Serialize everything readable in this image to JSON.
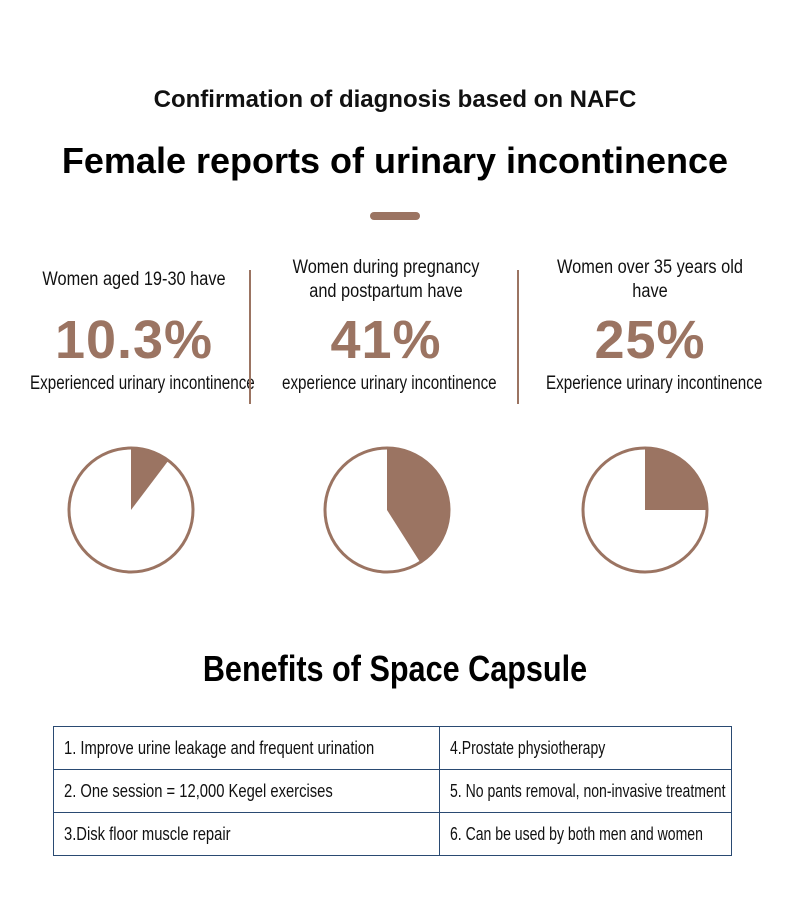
{
  "header": {
    "subtitle": "Confirmation of diagnosis based on NAFC",
    "title": "Female reports of urinary incontinence"
  },
  "colors": {
    "accent": "#9b7462",
    "table_border": "#2a4a72"
  },
  "stats": [
    {
      "lead": "Women aged 19-30 have",
      "percent": "10.3%",
      "tail": "Experienced urinary incontinence"
    },
    {
      "lead": "Women during pregnancy and postpartum have",
      "percent": "41%",
      "tail": "experience urinary incontinence"
    },
    {
      "lead": "Women over 35 years old have",
      "percent": "25%",
      "tail": "Experience urinary incontinence"
    }
  ],
  "chart_data": {
    "type": "pie",
    "charts": [
      {
        "value": 10.3,
        "total": 100
      },
      {
        "value": 41,
        "total": 100
      },
      {
        "value": 25,
        "total": 100
      }
    ]
  },
  "benefits": {
    "title": "Benefits of Space Capsule",
    "rows": [
      [
        "1. Improve urine leakage and frequent urination",
        "4.Prostate physiotherapy"
      ],
      [
        "2. One session = 12,000 Kegel exercises",
        "5. No pants removal, non-invasive treatment"
      ],
      [
        "3.Disk floor muscle repair",
        "6. Can be used by both men and women"
      ]
    ]
  }
}
